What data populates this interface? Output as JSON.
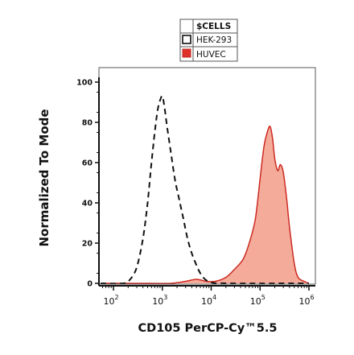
{
  "chart_data": {
    "type": "area",
    "xlabel": "CD105 PerCP-Cy™5.5",
    "ylabel": "Normalized To Mode",
    "x_scale": "log",
    "xlim": [
      10,
      1000000
    ],
    "ylim": [
      0,
      100
    ],
    "y_ticks": [
      0,
      20,
      40,
      60,
      80,
      100
    ],
    "x_ticks": [
      {
        "base": "10",
        "exp": "2",
        "value": 100
      },
      {
        "base": "10",
        "exp": "3",
        "value": 1000
      },
      {
        "base": "10",
        "exp": "4",
        "value": 10000
      },
      {
        "base": "10",
        "exp": "5",
        "value": 100000
      },
      {
        "base": "10",
        "exp": "6",
        "value": 1000000
      }
    ],
    "legend": {
      "title": "$CELLS",
      "placement": "top-center",
      "entries": [
        {
          "label": "HEK-293",
          "style": "dashed-black"
        },
        {
          "label": "HUVEC",
          "style": "filled-red"
        }
      ]
    },
    "series": [
      {
        "name": "HEK-293",
        "style": "dashed",
        "color": "#111111",
        "x": [
          10,
          160,
          220,
          300,
          400,
          500,
          600,
          700,
          800,
          900,
          1000,
          1100,
          1250,
          1500,
          1800,
          2200,
          2700,
          3300,
          4000,
          5000,
          6000,
          7500,
          10000,
          20000,
          1000000
        ],
        "y": [
          0,
          0,
          2,
          8,
          22,
          40,
          60,
          75,
          86,
          91,
          93,
          88,
          78,
          65,
          52,
          42,
          32,
          22,
          15,
          9,
          5,
          2,
          0.5,
          0,
          0
        ]
      },
      {
        "name": "HUVEC",
        "style": "filled",
        "color": "#cc2a22",
        "fill": "#f4a491",
        "x": [
          10,
          500,
          1500,
          3000,
          5000,
          8000,
          12000,
          20000,
          30000,
          45000,
          60000,
          80000,
          100000,
          120000,
          140000,
          160000,
          180000,
          200000,
          230000,
          260000,
          300000,
          350000,
          400000,
          500000,
          600000,
          800000,
          1000000
        ],
        "y": [
          0,
          0,
          0,
          1,
          2,
          1,
          1,
          3,
          7,
          12,
          20,
          32,
          52,
          68,
          75,
          78,
          72,
          62,
          56,
          59,
          55,
          42,
          28,
          10,
          3,
          1,
          0
        ]
      }
    ]
  }
}
